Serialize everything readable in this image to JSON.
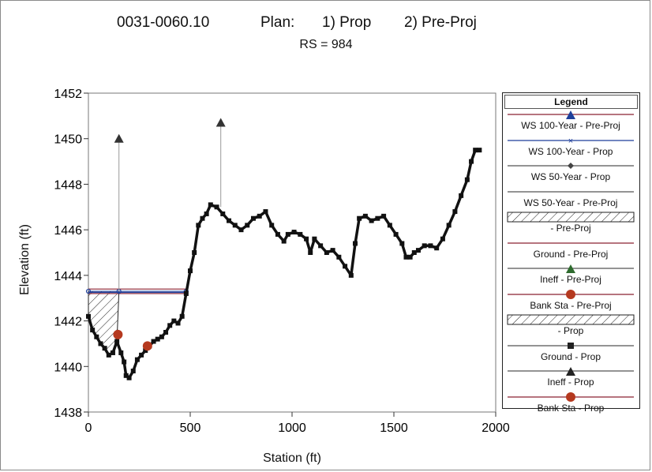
{
  "title": {
    "station_id": "0031-0060.10",
    "plan_label": "Plan:",
    "plan1": "1) Prop",
    "plan2": "2) Pre-Proj",
    "rs": "RS = 984"
  },
  "colors": {
    "ground": "#111111",
    "bank_sta": "#b5391f",
    "ws_prop": "#1f3f9a",
    "ws_preproj": "#8b2030",
    "ineff": "#333333",
    "ineff_line": "#999999"
  },
  "chart_data": {
    "type": "line",
    "xlabel": "Station (ft)",
    "ylabel": "Elevation (ft)",
    "xlim": [
      0,
      2000
    ],
    "ylim": [
      1438,
      1452
    ],
    "x_ticks": [
      "0",
      "500",
      "1000",
      "1500",
      "2000"
    ],
    "y_ticks": [
      "1438",
      "1440",
      "1442",
      "1444",
      "1446",
      "1448",
      "1450",
      "1452"
    ],
    "legend_position": "right",
    "series": [
      {
        "name": "Ground - Prop",
        "points": [
          [
            0,
            1442.2
          ],
          [
            20,
            1441.6
          ],
          [
            40,
            1441.3
          ],
          [
            60,
            1441.0
          ],
          [
            80,
            1440.8
          ],
          [
            100,
            1440.5
          ],
          [
            120,
            1440.6
          ],
          [
            140,
            1441.1
          ],
          [
            160,
            1440.6
          ],
          [
            175,
            1440.2
          ],
          [
            185,
            1439.6
          ],
          [
            200,
            1439.5
          ],
          [
            220,
            1439.8
          ],
          [
            240,
            1440.3
          ],
          [
            260,
            1440.5
          ],
          [
            280,
            1440.7
          ],
          [
            300,
            1440.9
          ],
          [
            320,
            1441.1
          ],
          [
            340,
            1441.2
          ],
          [
            360,
            1441.3
          ],
          [
            380,
            1441.5
          ],
          [
            400,
            1441.8
          ],
          [
            420,
            1442.0
          ],
          [
            440,
            1441.9
          ],
          [
            460,
            1442.2
          ],
          [
            480,
            1443.2
          ],
          [
            500,
            1444.2
          ],
          [
            520,
            1445.0
          ],
          [
            540,
            1446.2
          ],
          [
            560,
            1446.5
          ],
          [
            580,
            1446.7
          ],
          [
            600,
            1447.1
          ],
          [
            630,
            1447.0
          ],
          [
            660,
            1446.7
          ],
          [
            690,
            1446.4
          ],
          [
            720,
            1446.2
          ],
          [
            750,
            1446.0
          ],
          [
            780,
            1446.2
          ],
          [
            810,
            1446.5
          ],
          [
            840,
            1446.6
          ],
          [
            870,
            1446.8
          ],
          [
            900,
            1446.2
          ],
          [
            930,
            1445.8
          ],
          [
            960,
            1445.5
          ],
          [
            980,
            1445.8
          ],
          [
            1010,
            1445.9
          ],
          [
            1040,
            1445.8
          ],
          [
            1070,
            1445.6
          ],
          [
            1090,
            1445.0
          ],
          [
            1110,
            1445.6
          ],
          [
            1140,
            1445.3
          ],
          [
            1170,
            1445.0
          ],
          [
            1200,
            1445.1
          ],
          [
            1230,
            1444.8
          ],
          [
            1260,
            1444.4
          ],
          [
            1290,
            1444.0
          ],
          [
            1310,
            1445.4
          ],
          [
            1330,
            1446.5
          ],
          [
            1360,
            1446.6
          ],
          [
            1390,
            1446.4
          ],
          [
            1420,
            1446.5
          ],
          [
            1450,
            1446.6
          ],
          [
            1480,
            1446.2
          ],
          [
            1510,
            1445.8
          ],
          [
            1540,
            1445.4
          ],
          [
            1560,
            1444.8
          ],
          [
            1580,
            1444.8
          ],
          [
            1600,
            1445.0
          ],
          [
            1620,
            1445.1
          ],
          [
            1650,
            1445.3
          ],
          [
            1680,
            1445.3
          ],
          [
            1710,
            1445.2
          ],
          [
            1740,
            1445.6
          ],
          [
            1770,
            1446.2
          ],
          [
            1800,
            1446.8
          ],
          [
            1830,
            1447.5
          ],
          [
            1860,
            1448.2
          ],
          [
            1880,
            1449.0
          ],
          [
            1900,
            1449.5
          ],
          [
            1920,
            1449.5
          ]
        ]
      },
      {
        "name": "WS 100-Year - Pre-Proj",
        "points": [
          [
            0,
            1443.4
          ],
          [
            480,
            1443.4
          ]
        ]
      },
      {
        "name": "WS 100-Year - Prop",
        "points": [
          [
            0,
            1443.3
          ],
          [
            480,
            1443.3
          ]
        ]
      },
      {
        "name": "WS 50-Year - Prop",
        "points": [
          [
            0,
            1443.25
          ],
          [
            480,
            1443.25
          ]
        ]
      },
      {
        "name": "WS 50-Year - Pre-Proj",
        "points": [
          [
            0,
            1443.2
          ],
          [
            480,
            1443.2
          ]
        ]
      }
    ],
    "bank_stations": [
      [
        145,
        1441.4
      ],
      [
        290,
        1440.9
      ]
    ],
    "ineffective_markers": [
      [
        150,
        1450.0
      ],
      [
        650,
        1450.7
      ]
    ],
    "ineffective_drops": [
      [
        150,
        1443.3
      ],
      [
        650,
        1447.0
      ]
    ]
  },
  "legend": {
    "title": "Legend",
    "items": [
      "WS 100-Year - Pre-Proj",
      "WS 100-Year - Prop",
      "WS 50-Year - Prop",
      "WS 50-Year - Pre-Proj",
      "- Pre-Proj",
      "Ground - Pre-Proj",
      "Ineff - Pre-Proj",
      "Bank Sta - Pre-Proj",
      "- Prop",
      "Ground - Prop",
      "Ineff - Prop",
      "Bank Sta - Prop"
    ]
  }
}
